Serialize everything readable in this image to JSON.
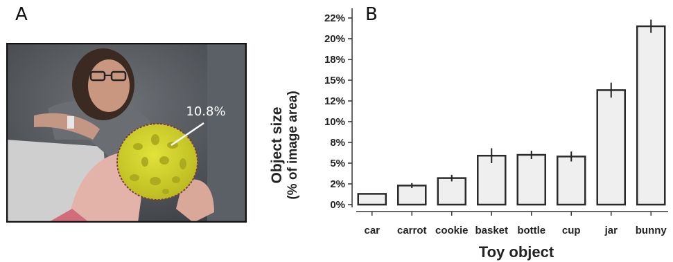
{
  "panels": {
    "a": "A",
    "b": "B"
  },
  "photo": {
    "annotation": "10.8%",
    "highlight_color": "#d4d42a",
    "description_icon": "child-holding-cookie-photo"
  },
  "chart_data": {
    "type": "bar",
    "title": "",
    "xlabel": "Toy object",
    "ylabel": "Object size",
    "ylabel2": "(% of image area)",
    "categories": [
      "car",
      "carrot",
      "cookie",
      "basket",
      "bottle",
      "cup",
      "jar",
      "bunny"
    ],
    "values": [
      1.3,
      2.3,
      3.2,
      5.9,
      6.0,
      5.8,
      13.8,
      21.5
    ],
    "errors": [
      0.0,
      0.3,
      0.4,
      0.9,
      0.5,
      0.6,
      0.9,
      0.8
    ],
    "yticks": [
      "0%",
      "2%",
      "5%",
      "8%",
      "10%",
      "12%",
      "15%",
      "18%",
      "20%",
      "22%"
    ],
    "ytick_values": [
      0,
      2.5,
      5,
      7.5,
      10,
      12.5,
      15,
      17.5,
      20,
      22.5
    ],
    "ylim": [
      0,
      22.5
    ],
    "bar_color": "#efefef",
    "edge_color": "#2a2a2a",
    "grid": false
  }
}
